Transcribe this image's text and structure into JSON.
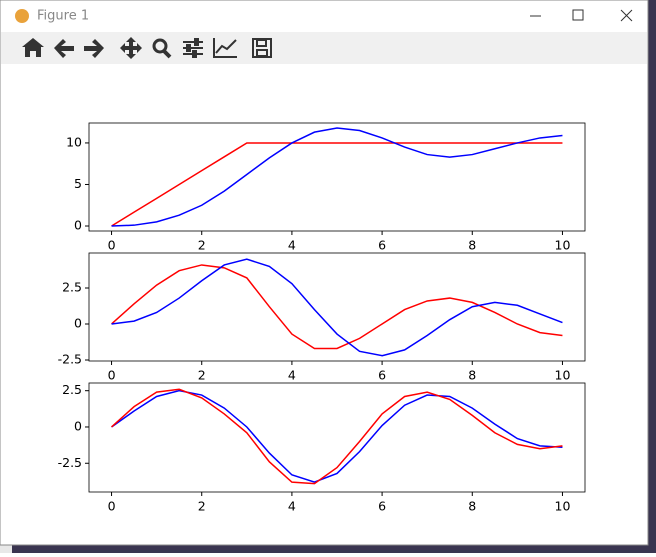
{
  "window": {
    "title": "Figure 1"
  },
  "chart_data": [
    {
      "type": "line",
      "x": [
        0,
        0.5,
        1,
        1.5,
        2,
        2.5,
        3,
        3.5,
        4,
        4.5,
        5,
        5.5,
        6,
        6.5,
        7,
        7.5,
        8,
        8.5,
        9,
        9.5,
        10
      ],
      "series": [
        {
          "color": "#ff0000",
          "values": [
            0,
            1.67,
            3.33,
            5,
            6.67,
            8.33,
            10,
            10,
            10,
            10,
            10,
            10,
            10,
            10,
            10,
            10,
            10,
            10,
            10,
            10,
            10
          ]
        },
        {
          "color": "#0000ff",
          "values": [
            0,
            0.1,
            0.5,
            1.3,
            2.5,
            4.2,
            6.2,
            8.2,
            10.0,
            11.3,
            11.8,
            11.5,
            10.6,
            9.5,
            8.6,
            8.3,
            8.6,
            9.3,
            10.0,
            10.6,
            10.9
          ]
        }
      ],
      "xlim": [
        -0.5,
        10.5
      ],
      "xticks": [
        0,
        2,
        4,
        6,
        8,
        10
      ],
      "ylim": [
        -0.6,
        12.4
      ],
      "yticks": [
        0,
        5,
        10
      ]
    },
    {
      "type": "line",
      "x": [
        0,
        0.5,
        1,
        1.5,
        2,
        2.5,
        3,
        3.5,
        4,
        4.5,
        5,
        5.5,
        6,
        6.5,
        7,
        7.5,
        8,
        8.5,
        9,
        9.5,
        10
      ],
      "series": [
        {
          "color": "#ff0000",
          "values": [
            0,
            1.4,
            2.7,
            3.7,
            4.1,
            3.9,
            3.2,
            1.2,
            -0.7,
            -1.7,
            -1.7,
            -1.0,
            0,
            1.0,
            1.6,
            1.8,
            1.5,
            0.8,
            0,
            -0.6,
            -0.8
          ]
        },
        {
          "color": "#0000ff",
          "values": [
            0,
            0.2,
            0.8,
            1.8,
            3.0,
            4.1,
            4.5,
            4.0,
            2.8,
            1.0,
            -0.7,
            -1.9,
            -2.2,
            -1.8,
            -0.8,
            0.3,
            1.2,
            1.5,
            1.3,
            0.7,
            0.1
          ]
        }
      ],
      "xlim": [
        -0.5,
        10.5
      ],
      "xticks": [
        0,
        2,
        4,
        6,
        8,
        10
      ],
      "ylim": [
        -2.57,
        4.93
      ],
      "yticks": [
        -2.5,
        0.0,
        2.5
      ]
    },
    {
      "type": "line",
      "x": [
        0,
        0.5,
        1,
        1.5,
        2,
        2.5,
        3,
        3.5,
        4,
        4.5,
        5,
        5.5,
        6,
        6.5,
        7,
        7.5,
        8,
        8.5,
        9,
        9.5,
        10
      ],
      "series": [
        {
          "color": "#0000ff",
          "values": [
            0,
            1.1,
            2.1,
            2.5,
            2.2,
            1.3,
            0,
            -1.8,
            -3.3,
            -3.8,
            -3.2,
            -1.7,
            0.1,
            1.5,
            2.2,
            2.1,
            1.3,
            0.2,
            -0.8,
            -1.3,
            -1.4
          ]
        },
        {
          "color": "#ff0000",
          "values": [
            0,
            1.4,
            2.4,
            2.6,
            2.0,
            0.9,
            -0.4,
            -2.4,
            -3.8,
            -3.9,
            -2.8,
            -1.0,
            0.9,
            2.1,
            2.4,
            1.9,
            0.8,
            -0.4,
            -1.2,
            -1.5,
            -1.3
          ]
        }
      ],
      "xlim": [
        -0.5,
        10.5
      ],
      "xticks": [
        0,
        2,
        4,
        6,
        8,
        10
      ],
      "ylim": [
        -4.48,
        3.03
      ],
      "yticks": [
        -2.5,
        0.0,
        2.5
      ]
    }
  ]
}
